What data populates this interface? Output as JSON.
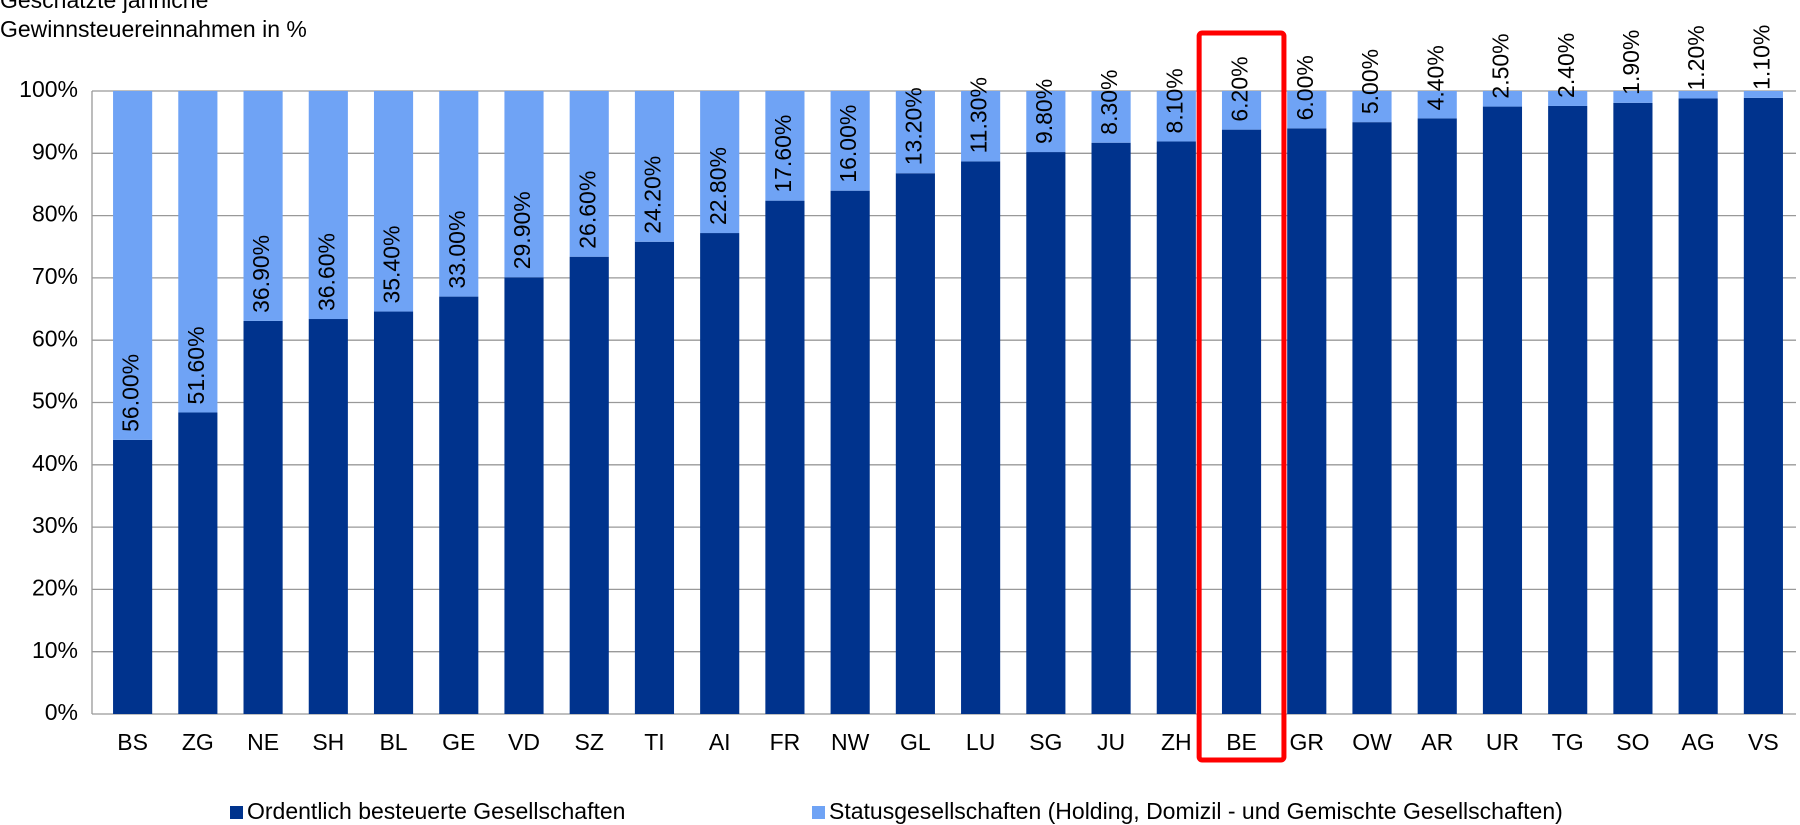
{
  "chart_data": {
    "type": "stacked_bar",
    "title": [
      "Geschätzte jährliche",
      "Gewinnsteuereinnahmen in %"
    ],
    "categories": [
      "BS",
      "ZG",
      "NE",
      "SH",
      "BL",
      "GE",
      "VD",
      "SZ",
      "TI",
      "AI",
      "FR",
      "NW",
      "GL",
      "LU",
      "SG",
      "JU",
      "ZH",
      "BE",
      "GR",
      "OW",
      "AR",
      "UR",
      "TG",
      "SO",
      "AG",
      "VS"
    ],
    "series": [
      {
        "name": "Ordentlich besteuerte Gesellschaften",
        "color": "#00338d",
        "values": [
          44,
          48.4,
          63.1,
          63.4,
          64.6,
          67,
          70.1,
          73.4,
          75.8,
          77.2,
          82.4,
          84,
          86.8,
          88.7,
          90.2,
          91.7,
          91.9,
          93.8,
          94,
          95,
          95.6,
          97.5,
          97.6,
          98.1,
          98.8,
          98.9
        ]
      },
      {
        "name": "Statusgesellschaften (Holding, Domizil - und Gemischte Gesellschaften)",
        "color": "#6fa3f5",
        "values": [
          56,
          51.6,
          36.9,
          36.6,
          35.4,
          33,
          29.9,
          26.6,
          24.2,
          22.8,
          17.6,
          16,
          13.2,
          11.3,
          9.8,
          8.3,
          8.1,
          6.2,
          6,
          5,
          4.4,
          2.5,
          2.4,
          1.9,
          1.2,
          1.1
        ],
        "value_labels": [
          "56.00%",
          "51.60%",
          "36.90%",
          "36.60%",
          "35.40%",
          "33.00%",
          "29.90%",
          "26.60%",
          "24.20%",
          "22.80%",
          "17.60%",
          "16.00%",
          "13.20%",
          "11.30%",
          "9.80%",
          "8.30%",
          "8.10%",
          "6.20%",
          "6.00%",
          "5.00%",
          "4.40%",
          "2.50%",
          "2.40%",
          "1.90%",
          "1.20%",
          "1.10%"
        ]
      }
    ],
    "ylim": [
      0,
      100
    ],
    "yticks": [
      {
        "value": 0,
        "label": "0%"
      },
      {
        "value": 10,
        "label": "10%"
      },
      {
        "value": 20,
        "label": "20%"
      },
      {
        "value": 30,
        "label": "30%"
      },
      {
        "value": 40,
        "label": "40%"
      },
      {
        "value": 50,
        "label": "50%"
      },
      {
        "value": 60,
        "label": "60%"
      },
      {
        "value": 70,
        "label": "70%"
      },
      {
        "value": 80,
        "label": "80%"
      },
      {
        "value": 90,
        "label": "90%"
      },
      {
        "value": 100,
        "label": "100%"
      }
    ],
    "grid": true,
    "legend": "bottom",
    "highlight_index": 17,
    "highlight_color": "#ff0000"
  }
}
